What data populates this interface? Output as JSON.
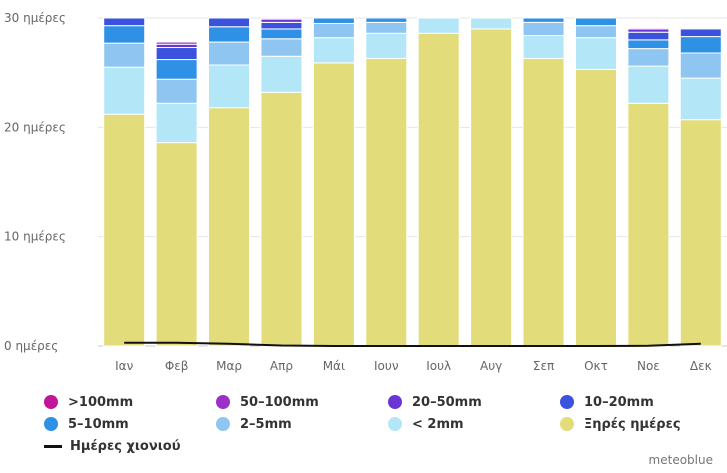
{
  "chart_data": {
    "type": "bar",
    "stacked": true,
    "categories": [
      "Ιαν",
      "Φεβ",
      "Μαρ",
      "Απρ",
      "Μάι",
      "Ιουν",
      "Ιουλ",
      "Αυγ",
      "Σεπ",
      "Οκτ",
      "Νοε",
      "Δεκ"
    ],
    "y_ticks": [
      "0 ημέρες",
      "10 ημέρες",
      "20 ημέρες",
      "30 ημέρες"
    ],
    "ylim": [
      0,
      30
    ],
    "grid": true,
    "legend_placement": "bottom",
    "series": [
      {
        "name": "Ξηρές ημέρες",
        "color": "#e3dc7a",
        "values": [
          21.2,
          18.6,
          21.8,
          23.2,
          25.9,
          26.3,
          28.6,
          29.0,
          26.3,
          25.3,
          22.2,
          20.7
        ]
      },
      {
        "name": "< 2mm",
        "color": "#b3e6f7",
        "values": [
          4.3,
          3.6,
          3.9,
          3.3,
          2.3,
          2.3,
          1.4,
          1.0,
          2.1,
          2.9,
          3.4,
          3.8
        ]
      },
      {
        "name": "2–5mm",
        "color": "#8ec6f1",
        "values": [
          2.2,
          2.2,
          2.1,
          1.6,
          1.3,
          1.0,
          0,
          0,
          1.2,
          1.1,
          1.6,
          2.3
        ]
      },
      {
        "name": "5–10mm",
        "color": "#2f91e6",
        "values": [
          1.6,
          1.8,
          1.4,
          0.9,
          0.5,
          0.4,
          0,
          0,
          0.4,
          0.7,
          0.8,
          1.5
        ]
      },
      {
        "name": "10–20mm",
        "color": "#3a52dd",
        "values": [
          0.7,
          1.1,
          0.8,
          0.6,
          0,
          0,
          0,
          0,
          0,
          0,
          0.7,
          0.7
        ]
      },
      {
        "name": "20–50mm",
        "color": "#6a35d4",
        "values": [
          0,
          0.3,
          0,
          0.3,
          0,
          0,
          0,
          0,
          0,
          0,
          0.3,
          0
        ]
      },
      {
        "name": "50–100mm",
        "color": "#9a30c8",
        "values": [
          0,
          0.2,
          0,
          0.1,
          0,
          0.1,
          0,
          0,
          0,
          0,
          0.1,
          0
        ]
      },
      {
        "name": ">100mm",
        "color": "#c0169a",
        "values": [
          0,
          0,
          0,
          0,
          0,
          0,
          0,
          0,
          0,
          0,
          0,
          0
        ]
      }
    ],
    "line_series": {
      "name": "Ημέρες χιονιού",
      "color": "#111111",
      "values": [
        0.3,
        0.3,
        0.2,
        0.05,
        0,
        0,
        0,
        0,
        0,
        0,
        0.02,
        0.2
      ]
    }
  },
  "legend": [
    {
      "label": ">100mm",
      "color": "#c0169a"
    },
    {
      "label": "50–100mm",
      "color": "#9a30c8"
    },
    {
      "label": "20–50mm",
      "color": "#6a35d4"
    },
    {
      "label": "10–20mm",
      "color": "#3a52dd"
    },
    {
      "label": "5–10mm",
      "color": "#2f91e6"
    },
    {
      "label": "2–5mm",
      "color": "#8ec6f1"
    },
    {
      "label": "< 2mm",
      "color": "#b3e6f7"
    },
    {
      "label": "Ξηρές ημέρες",
      "color": "#e3dc7a"
    }
  ],
  "legend_line": {
    "label": "Ημέρες χιονιού",
    "color": "#111111"
  },
  "credit": "meteoblue"
}
